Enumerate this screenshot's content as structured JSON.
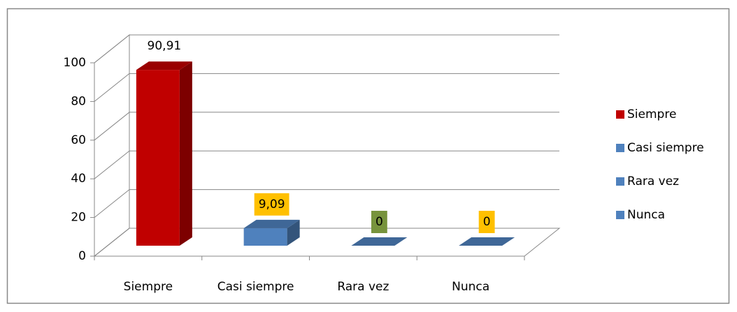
{
  "chart_data": {
    "type": "bar3d",
    "categories": [
      "Siempre",
      "Casi siempre",
      "Rara vez",
      "Nunca"
    ],
    "values": [
      90.91,
      9.09,
      0,
      0
    ],
    "value_labels": [
      "90,91",
      "9,09",
      "0",
      "0"
    ],
    "colors": [
      "#c00000",
      "#4f81bd",
      "#4f81bd",
      "#4f81bd"
    ],
    "value_label_colors": [
      null,
      "#ffc000",
      "#77933c",
      "#ffc000"
    ],
    "ylim": [
      0,
      100
    ],
    "yticks": [
      0,
      20,
      40,
      60,
      80,
      100
    ],
    "grid": true,
    "legend": "right"
  }
}
